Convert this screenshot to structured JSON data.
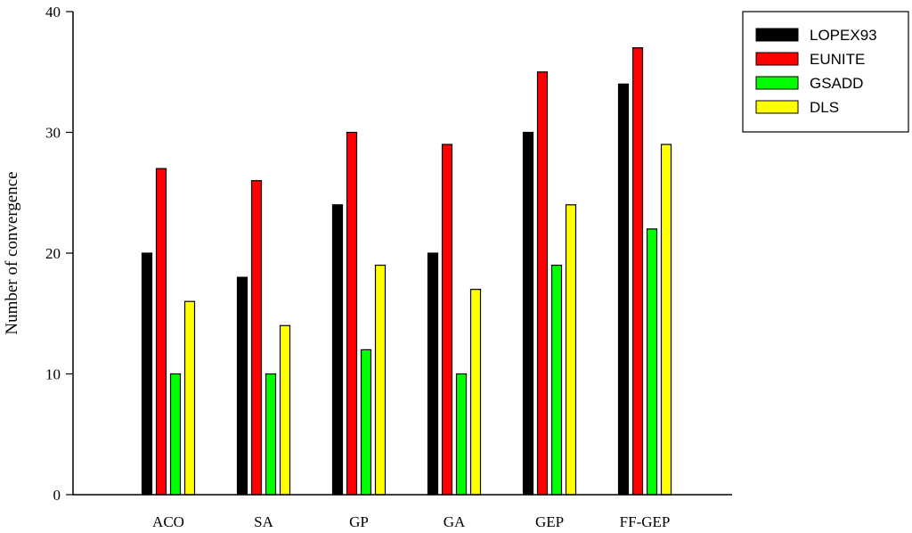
{
  "chart_data": {
    "type": "bar",
    "title": "",
    "xlabel": "",
    "ylabel": "Number of convergence",
    "ylim": [
      0,
      40
    ],
    "yticks": [
      0,
      10,
      20,
      30,
      40
    ],
    "grid": false,
    "legend_position": "top-right, outside plot",
    "categories": [
      "ACO",
      "SA",
      "GP",
      "GA",
      "GEP",
      "FF-GEP"
    ],
    "series": [
      {
        "name": "LOPEX93",
        "color": "#000000",
        "values": [
          20,
          18,
          24,
          20,
          30,
          34
        ]
      },
      {
        "name": "EUNITE",
        "color": "#ff0000",
        "values": [
          27,
          26,
          30,
          29,
          35,
          37
        ]
      },
      {
        "name": "GSADD",
        "color": "#00ff00",
        "values": [
          10,
          10,
          12,
          10,
          19,
          22
        ]
      },
      {
        "name": "DLS",
        "color": "#ffff00",
        "values": [
          16,
          14,
          19,
          17,
          24,
          29
        ]
      }
    ]
  }
}
